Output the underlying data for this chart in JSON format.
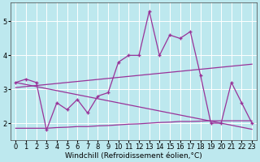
{
  "x": [
    0,
    1,
    2,
    3,
    4,
    5,
    6,
    7,
    8,
    9,
    10,
    11,
    12,
    13,
    14,
    15,
    16,
    17,
    18,
    19,
    20,
    21,
    22,
    23
  ],
  "y_data": [
    3.2,
    3.3,
    3.2,
    1.8,
    2.6,
    2.4,
    2.7,
    2.3,
    2.8,
    2.9,
    3.8,
    4.0,
    4.0,
    5.3,
    4.0,
    4.6,
    4.5,
    4.7,
    3.4,
    2.0,
    2.0,
    3.2,
    2.6,
    2.0
  ],
  "y_upper_trend": [
    3.05,
    3.08,
    3.11,
    3.14,
    3.17,
    3.2,
    3.23,
    3.26,
    3.29,
    3.32,
    3.35,
    3.38,
    3.41,
    3.44,
    3.47,
    3.5,
    3.53,
    3.56,
    3.59,
    3.62,
    3.65,
    3.68,
    3.71,
    3.74
  ],
  "y_lower_trend": [
    3.2,
    3.14,
    3.08,
    3.02,
    2.96,
    2.9,
    2.84,
    2.78,
    2.72,
    2.66,
    2.6,
    2.54,
    2.48,
    2.42,
    2.36,
    2.3,
    2.24,
    2.18,
    2.12,
    2.06,
    2.0,
    1.94,
    1.88,
    1.82
  ],
  "y_flat": [
    1.85,
    1.85,
    1.85,
    1.85,
    1.87,
    1.88,
    1.9,
    1.9,
    1.92,
    1.93,
    1.95,
    1.97,
    1.98,
    2.0,
    2.02,
    2.03,
    2.05,
    2.05,
    2.06,
    2.07,
    2.07,
    2.07,
    2.07,
    2.07
  ],
  "line_color": "#993399",
  "bg_color": "#bde8ee",
  "grid_color": "#ffffff",
  "xlabel": "Windchill (Refroidissement éolien,°C)",
  "ylim": [
    1.5,
    5.55
  ],
  "xlim": [
    -0.5,
    23.5
  ],
  "yticks": [
    2,
    3,
    4,
    5
  ],
  "xticks": [
    0,
    1,
    2,
    3,
    4,
    5,
    6,
    7,
    8,
    9,
    10,
    11,
    12,
    13,
    14,
    15,
    16,
    17,
    18,
    19,
    20,
    21,
    22,
    23
  ],
  "xlabel_fontsize": 6.5,
  "tick_fontsize": 6.0,
  "marker": "+",
  "markersize": 3.5,
  "linewidth": 0.9
}
